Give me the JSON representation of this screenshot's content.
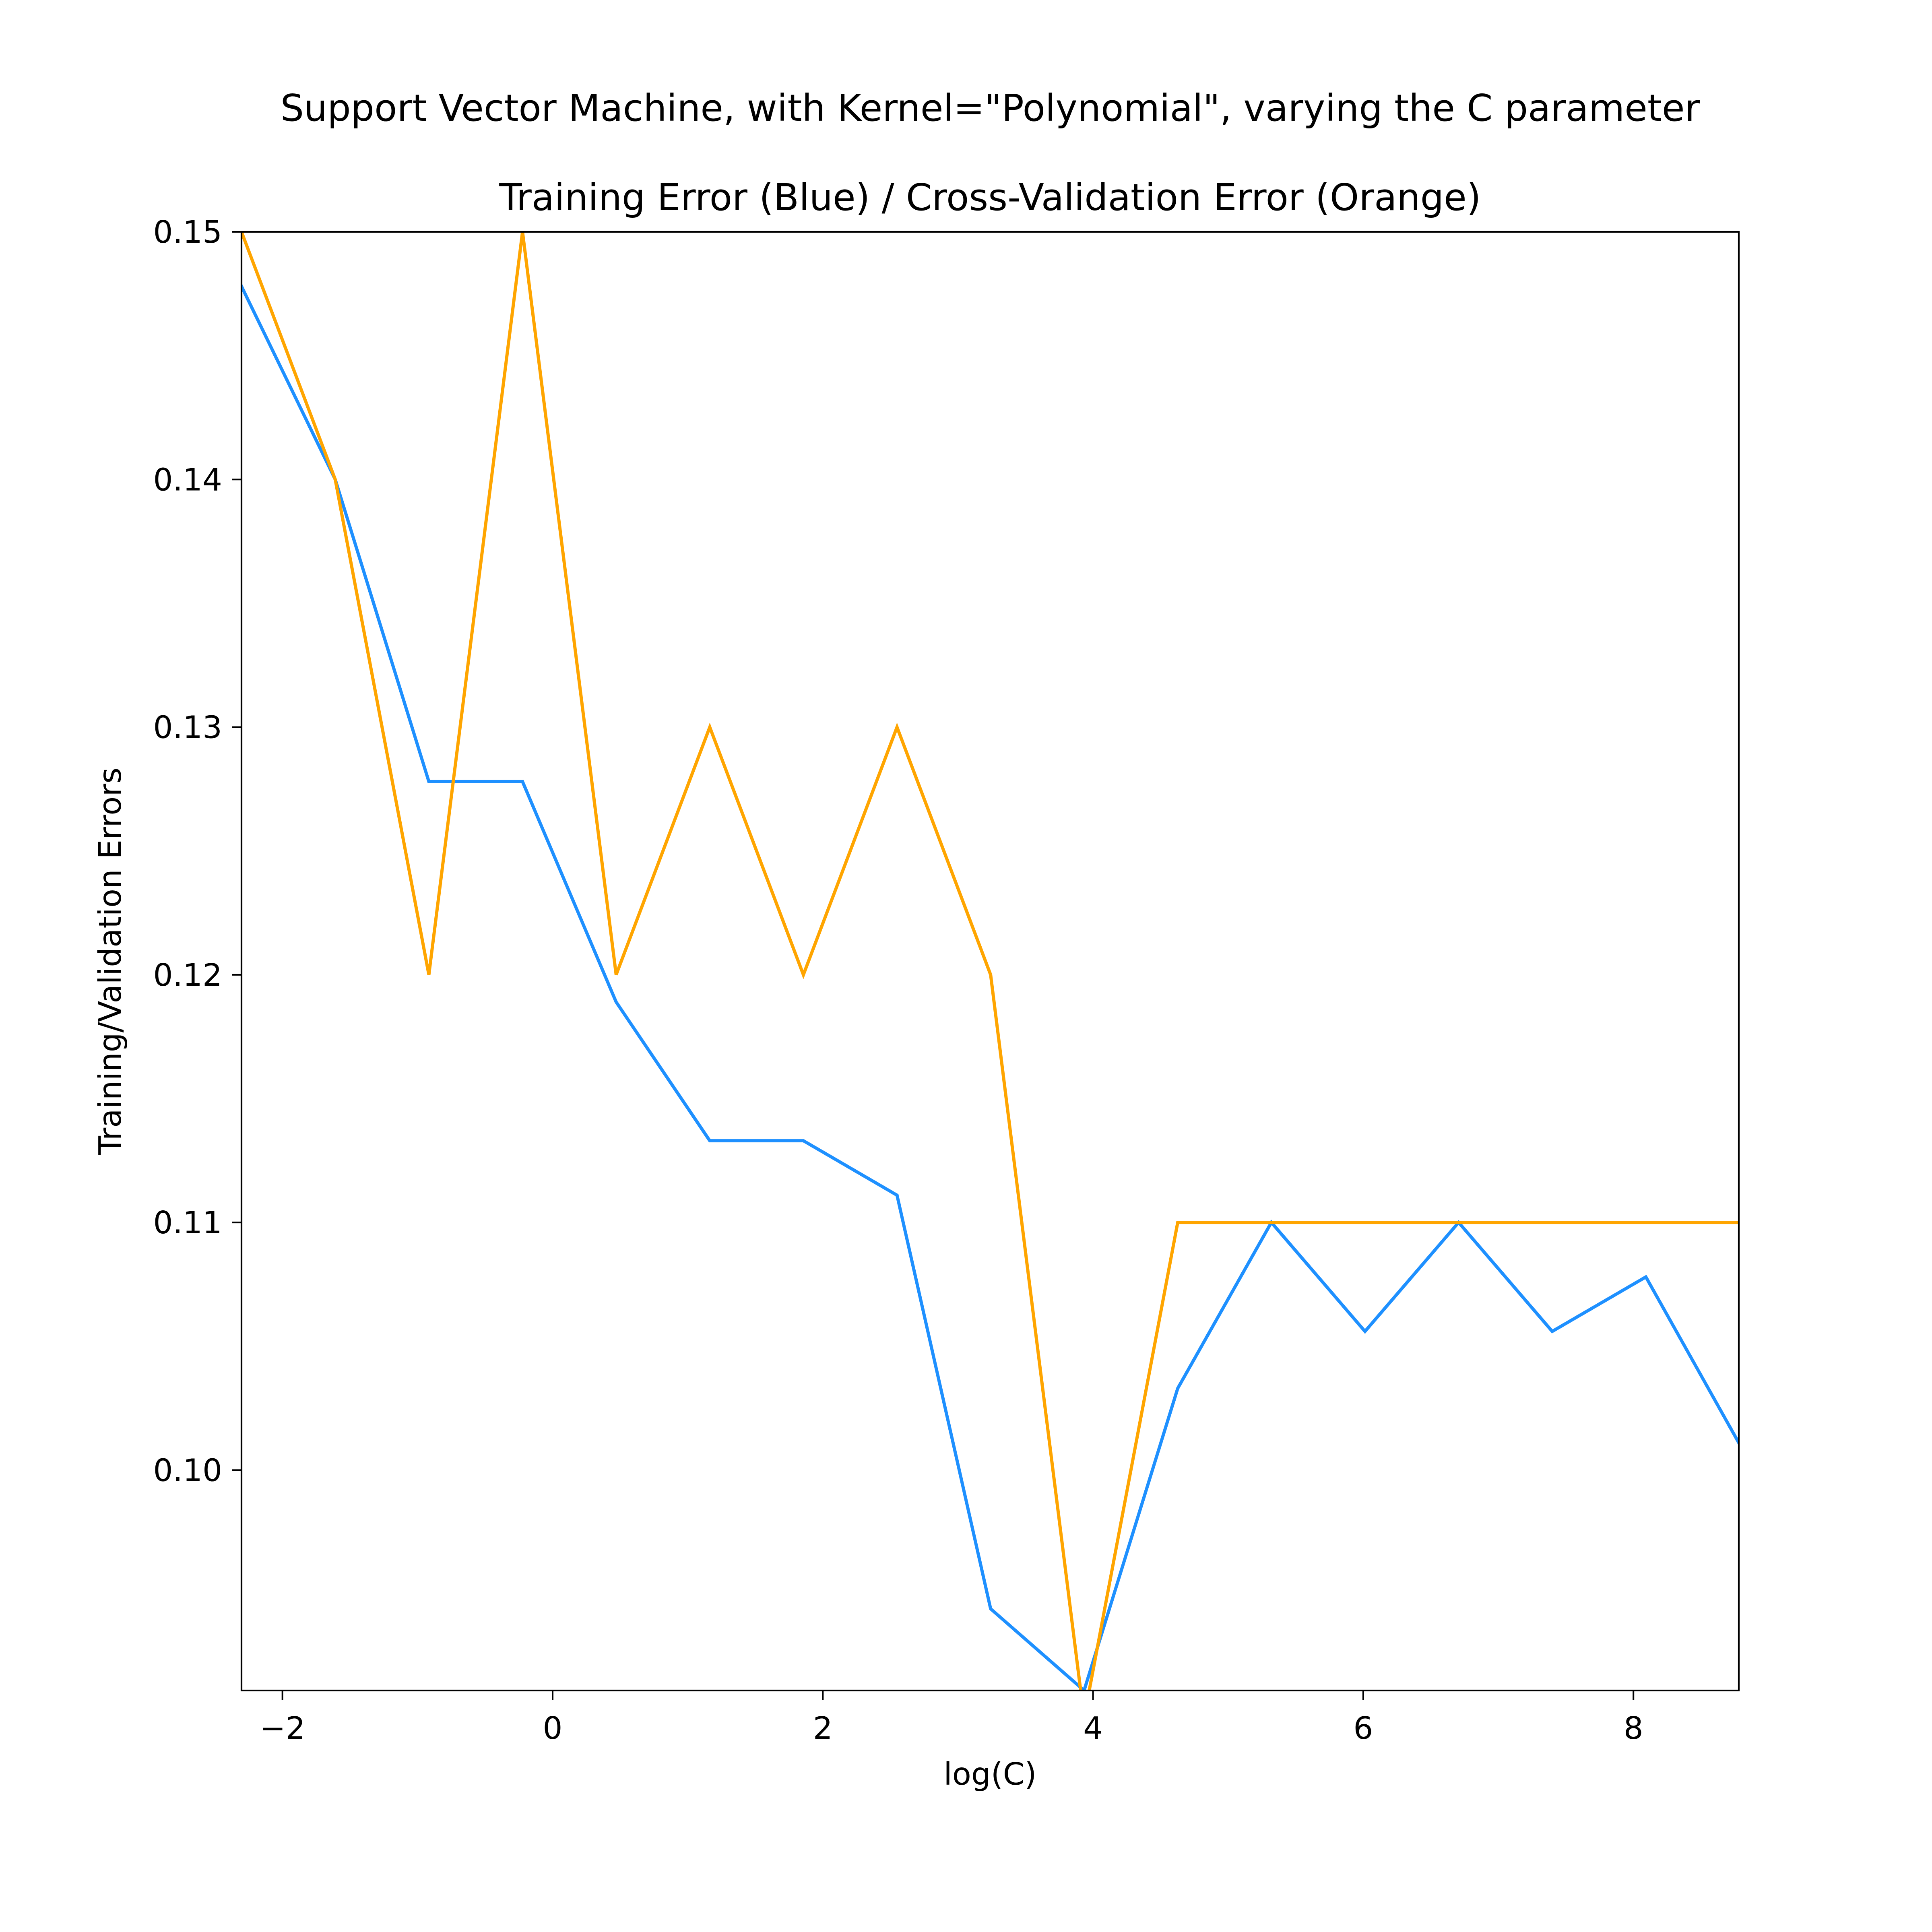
{
  "chart_data": {
    "type": "line",
    "suptitle": "Support Vector Machine, with Kernel=\"Polynomial\", varying the C parameter",
    "title": "Training Error (Blue) / Cross-Validation Error (Orange)",
    "xlabel": "log(C)",
    "ylabel": "Training/Validation Errors",
    "xlim": [
      -2.303,
      8.78
    ],
    "ylim": [
      0.0911,
      0.15
    ],
    "xticks": [
      -2,
      0,
      2,
      4,
      6,
      8
    ],
    "xtick_labels": [
      "−2",
      "0",
      "2",
      "4",
      "6",
      "8"
    ],
    "yticks": [
      0.1,
      0.11,
      0.12,
      0.13,
      0.14,
      0.15
    ],
    "ytick_labels": [
      "0.10",
      "0.11",
      "0.12",
      "0.13",
      "0.14",
      "0.15"
    ],
    "grid": false,
    "x": [
      -2.303,
      -1.609,
      -0.916,
      -0.223,
      0.47,
      1.163,
      1.856,
      2.549,
      3.242,
      3.934,
      4.627,
      5.32,
      6.013,
      6.706,
      7.399,
      8.092,
      8.78
    ],
    "series": [
      {
        "color": "#1e90ff",
        "values": [
          0.1478,
          0.14,
          0.1278,
          0.1278,
          0.1189,
          0.1133,
          0.1133,
          0.1111,
          0.0944,
          0.0911,
          0.1033,
          0.11,
          0.1056,
          0.11,
          0.1056,
          0.1078,
          0.1011
        ]
      },
      {
        "color": "#ffa500",
        "values": [
          0.15,
          0.14,
          0.12,
          0.15,
          0.12,
          0.13,
          0.12,
          0.13,
          0.12,
          0.09,
          0.11,
          0.11,
          0.11,
          0.11,
          0.11,
          0.11,
          0.11
        ]
      }
    ]
  }
}
